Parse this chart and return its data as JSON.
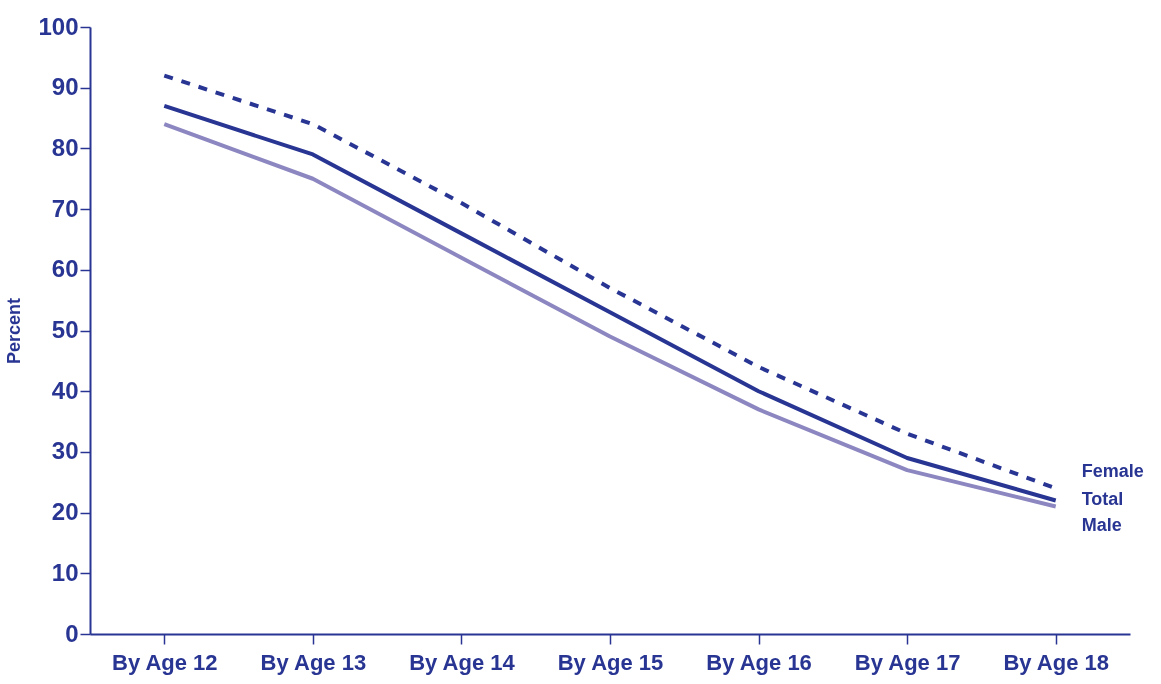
{
  "chart_data": {
    "type": "line",
    "ylabel": "Percent",
    "categories": [
      "By Age 12",
      "By Age 13",
      "By Age 14",
      "By Age 15",
      "By Age 16",
      "By Age 17",
      "By Age 18"
    ],
    "series": [
      {
        "name": "Female",
        "color": "#283593",
        "line_style": "dashed",
        "values": [
          92,
          84,
          71,
          57,
          44,
          33,
          24
        ]
      },
      {
        "name": "Total",
        "color": "#283593",
        "line_style": "solid",
        "values": [
          87,
          79,
          66,
          53,
          40,
          29,
          22
        ]
      },
      {
        "name": "Male",
        "color": "#8c87c0",
        "line_style": "solid",
        "values": [
          84,
          75,
          62,
          49,
          37,
          27,
          21
        ]
      }
    ],
    "ylim": [
      0,
      100
    ],
    "yticks": [
      0,
      10,
      20,
      30,
      40,
      50,
      60,
      70,
      80,
      90,
      100
    ],
    "grid": false,
    "marker": "none"
  }
}
